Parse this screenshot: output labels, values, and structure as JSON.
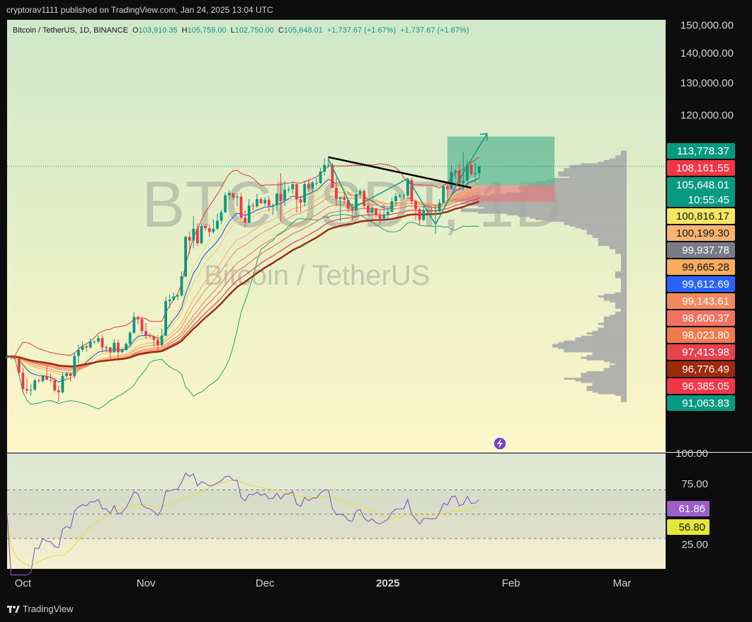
{
  "header": {
    "published": "cryptorav1111 published on TradingView.com, Jan 24, 2025 13:04 UTC"
  },
  "footer": {
    "brand": "TradingView",
    "logo_icon": "tradingview-logo-icon"
  },
  "legend": {
    "symbol": "Bitcoin / TetherUS, 1D, BINANCE",
    "open_label": "O",
    "open": "103,910.35",
    "high_label": "H",
    "high": "105,759.00",
    "low_label": "L",
    "low": "102,750.00",
    "close_label": "C",
    "close": "105,648.01",
    "change": "+1,737.67 (+1.67%)",
    "change2": "+1,737.67 (+1.67%)"
  },
  "watermark": {
    "ticker": "BTCUSDT, 1D",
    "name": "Bitcoin / TetherUS"
  },
  "colors": {
    "up": "#089981",
    "down": "#f23645",
    "bg_top": "#cfe8c9",
    "bg_bottom": "#fdf6c8",
    "long_box": "#5fb894",
    "stop_box": "#e67373",
    "volume_profile": "#a8a8a8",
    "bollinger_upper": "#e53935",
    "bollinger_lower": "#22a36b",
    "ema_blue": "#2962ff",
    "rsi_line": "#7e57c2",
    "rsi_ma": "#e6e04a"
  },
  "chart_data": [
    {
      "type": "candlestick",
      "title": "",
      "x_axis": {
        "ticks": [
          "Oct",
          "Nov",
          "Dec",
          "2025",
          "Feb",
          "Mar"
        ]
      },
      "y_axis": {
        "ticks": [
          "150,000.00",
          "140,000.00",
          "130,000.00",
          "120,000.00"
        ],
        "scale": "log"
      },
      "range": {
        "x_start": "2024-09-27",
        "x_end": "2025-03-12",
        "y_min": 52000,
        "y_max": 152000
      },
      "price_labels": [
        {
          "value": 113778.37,
          "text": "113,778.37",
          "color": "#089981"
        },
        {
          "value": 108161.55,
          "text": "108,161.55",
          "color": "#f23645"
        },
        {
          "value": 105648.01,
          "text": "105,648.01",
          "sub": "10:55:45",
          "color": "#089981"
        },
        {
          "value": 100816.17,
          "text": "100,816.17",
          "color": "#f5e663",
          "fg": "#131722"
        },
        {
          "value": 100199.3,
          "text": "100,199.30",
          "color": "#f8b36f",
          "fg": "#131722"
        },
        {
          "value": 99937.78,
          "text": "99,937.78",
          "color": "#787b86"
        },
        {
          "value": 99665.28,
          "text": "99,665.28",
          "color": "#f7ad5c",
          "fg": "#131722"
        },
        {
          "value": 99612.69,
          "text": "99,612.69",
          "color": "#2962ff"
        },
        {
          "value": 99143.61,
          "text": "99,143.61",
          "color": "#f08a5d"
        },
        {
          "value": 98600.37,
          "text": "98,600.37",
          "color": "#ef7361"
        },
        {
          "value": 98023.8,
          "text": "98,023.80",
          "color": "#f07a4a"
        },
        {
          "value": 97413.98,
          "text": "97,413.98",
          "color": "#e8414f"
        },
        {
          "value": 96776.49,
          "text": "96,776.49",
          "color": "#9e2a0b"
        },
        {
          "value": 96385.05,
          "text": "96,385.05",
          "color": "#f23645"
        },
        {
          "value": 91063.83,
          "text": "91,063.83",
          "color": "#089981"
        }
      ],
      "position": {
        "type": "long",
        "target": 113778.37,
        "entry": 100816.17,
        "stop": 96776.49,
        "start": "2025-01-16",
        "end": "2025-02-12"
      },
      "trendline": {
        "from": {
          "date": "2024-12-17",
          "price": 108100
        },
        "to": {
          "date": "2025-01-22",
          "price": 100200
        }
      },
      "current_price": 105648.01,
      "candles": [
        [
          "2024-09-27",
          65700,
          66400,
          65600,
          65900
        ],
        [
          "2024-09-28",
          65900,
          66200,
          65400,
          65800
        ],
        [
          "2024-09-29",
          65800,
          66100,
          65400,
          65600
        ],
        [
          "2024-09-30",
          65600,
          65700,
          63000,
          63300
        ],
        [
          "2024-10-01",
          63300,
          64100,
          60200,
          60800
        ],
        [
          "2024-10-02",
          60800,
          62400,
          60100,
          60600
        ],
        [
          "2024-10-03",
          60600,
          61500,
          59800,
          60700
        ],
        [
          "2024-10-04",
          60700,
          62400,
          60500,
          62100
        ],
        [
          "2024-10-05",
          62100,
          62400,
          61700,
          62000
        ],
        [
          "2024-10-06",
          62000,
          62900,
          61800,
          62800
        ],
        [
          "2024-10-07",
          62800,
          64500,
          62300,
          62200
        ],
        [
          "2024-10-08",
          62200,
          63200,
          61800,
          62100
        ],
        [
          "2024-10-09",
          62100,
          62500,
          60300,
          60600
        ],
        [
          "2024-10-10",
          60600,
          61300,
          58900,
          60300
        ],
        [
          "2024-10-11",
          60300,
          63400,
          60100,
          62800
        ],
        [
          "2024-10-12",
          62800,
          63500,
          62500,
          63200
        ],
        [
          "2024-10-13",
          63200,
          63300,
          62000,
          62800
        ],
        [
          "2024-10-14",
          62800,
          66500,
          62400,
          66000
        ],
        [
          "2024-10-15",
          66000,
          67900,
          64800,
          67000
        ],
        [
          "2024-10-16",
          67000,
          68400,
          66700,
          67600
        ],
        [
          "2024-10-17",
          67600,
          67900,
          66700,
          67400
        ],
        [
          "2024-10-18",
          67400,
          68900,
          67200,
          68400
        ],
        [
          "2024-10-19",
          68400,
          68600,
          68000,
          68400
        ],
        [
          "2024-10-20",
          68400,
          69400,
          68100,
          69000
        ],
        [
          "2024-10-21",
          69000,
          69500,
          66600,
          67400
        ],
        [
          "2024-10-22",
          67400,
          67800,
          66600,
          67400
        ],
        [
          "2024-10-23",
          67400,
          67500,
          65200,
          66600
        ],
        [
          "2024-10-24",
          66600,
          68800,
          66500,
          68200
        ],
        [
          "2024-10-25",
          68200,
          68700,
          65500,
          66600
        ],
        [
          "2024-10-26",
          66600,
          67400,
          66500,
          67000
        ],
        [
          "2024-10-27",
          67000,
          68300,
          66800,
          68000
        ],
        [
          "2024-10-28",
          68000,
          70200,
          67500,
          69900
        ],
        [
          "2024-10-29",
          69900,
          73600,
          69700,
          72700
        ],
        [
          "2024-10-30",
          72700,
          72900,
          71400,
          72300
        ],
        [
          "2024-10-31",
          72300,
          72700,
          69700,
          70200
        ],
        [
          "2024-11-01",
          70200,
          71600,
          68800,
          69500
        ],
        [
          "2024-11-02",
          69500,
          69900,
          69000,
          69300
        ],
        [
          "2024-11-03",
          69300,
          69400,
          67500,
          68700
        ],
        [
          "2024-11-04",
          68700,
          69500,
          66800,
          67800
        ],
        [
          "2024-11-05",
          67800,
          70600,
          67500,
          69400
        ],
        [
          "2024-11-06",
          69400,
          76400,
          69300,
          75600
        ],
        [
          "2024-11-07",
          75600,
          76900,
          74400,
          75900
        ],
        [
          "2024-11-08",
          75900,
          77200,
          75600,
          76500
        ],
        [
          "2024-11-09",
          76500,
          76900,
          75800,
          76700
        ],
        [
          "2024-11-10",
          76700,
          81400,
          76500,
          80400
        ],
        [
          "2024-11-11",
          80400,
          89000,
          80200,
          88700
        ],
        [
          "2024-11-12",
          88700,
          89900,
          85100,
          87900
        ],
        [
          "2024-11-13",
          87900,
          93400,
          86200,
          90500
        ],
        [
          "2024-11-14",
          90500,
          91800,
          86700,
          87300
        ],
        [
          "2024-11-15",
          87300,
          91800,
          87000,
          91100
        ],
        [
          "2024-11-16",
          91100,
          91600,
          90100,
          90600
        ],
        [
          "2024-11-17",
          90600,
          91400,
          88700,
          89800
        ],
        [
          "2024-11-18",
          89800,
          92600,
          89400,
          90500
        ],
        [
          "2024-11-19",
          90500,
          94000,
          90300,
          92300
        ],
        [
          "2024-11-20",
          92300,
          94900,
          91500,
          94300
        ],
        [
          "2024-11-21",
          94300,
          99000,
          94100,
          98300
        ],
        [
          "2024-11-22",
          98300,
          99600,
          97200,
          98900
        ],
        [
          "2024-11-23",
          98900,
          98900,
          97200,
          97800
        ],
        [
          "2024-11-24",
          97800,
          98700,
          95700,
          98000
        ],
        [
          "2024-11-25",
          98000,
          98900,
          92600,
          93000
        ],
        [
          "2024-11-26",
          93000,
          94700,
          90800,
          91900
        ],
        [
          "2024-11-27",
          91900,
          97400,
          91800,
          95900
        ],
        [
          "2024-11-28",
          95900,
          96600,
          94700,
          95700
        ],
        [
          "2024-11-29",
          95700,
          98700,
          95400,
          97400
        ],
        [
          "2024-11-30",
          97400,
          97800,
          96300,
          96400
        ],
        [
          "2024-12-01",
          96400,
          97900,
          95800,
          97200
        ],
        [
          "2024-12-02",
          97200,
          98100,
          94500,
          95800
        ],
        [
          "2024-12-03",
          95800,
          96300,
          93600,
          96000
        ],
        [
          "2024-12-04",
          96000,
          99000,
          94600,
          98700
        ],
        [
          "2024-12-05",
          98700,
          103900,
          92100,
          97000
        ],
        [
          "2024-12-06",
          97000,
          101900,
          95800,
          99700
        ],
        [
          "2024-12-07",
          99700,
          100500,
          99000,
          99800
        ],
        [
          "2024-12-08",
          99800,
          101400,
          98800,
          101100
        ],
        [
          "2024-12-09",
          101100,
          101200,
          94200,
          97300
        ],
        [
          "2024-12-10",
          97300,
          98300,
          94300,
          96600
        ],
        [
          "2024-12-11",
          96600,
          101900,
          95600,
          101100
        ],
        [
          "2024-12-12",
          101100,
          102500,
          99300,
          100000
        ],
        [
          "2024-12-13",
          100000,
          101900,
          99200,
          101400
        ],
        [
          "2024-12-14",
          101400,
          102600,
          100600,
          101400
        ],
        [
          "2024-12-15",
          101400,
          105200,
          101200,
          104300
        ],
        [
          "2024-12-16",
          104300,
          107800,
          103300,
          106000
        ],
        [
          "2024-12-17",
          106000,
          108300,
          105300,
          106100
        ],
        [
          "2024-12-18",
          106100,
          106500,
          100000,
          100200
        ],
        [
          "2024-12-19",
          100200,
          102800,
          95700,
          97400
        ],
        [
          "2024-12-20",
          97400,
          98000,
          92200,
          97800
        ],
        [
          "2024-12-21",
          97800,
          99500,
          96400,
          97200
        ],
        [
          "2024-12-22",
          97200,
          97400,
          94200,
          95100
        ],
        [
          "2024-12-23",
          95100,
          96400,
          92400,
          94700
        ],
        [
          "2024-12-24",
          94700,
          99500,
          93400,
          98600
        ],
        [
          "2024-12-25",
          98600,
          99900,
          97600,
          99400
        ],
        [
          "2024-12-26",
          99400,
          99900,
          95100,
          95800
        ],
        [
          "2024-12-27",
          95800,
          97500,
          93500,
          94200
        ],
        [
          "2024-12-28",
          94200,
          95500,
          94100,
          95200
        ],
        [
          "2024-12-29",
          95200,
          95200,
          93000,
          93600
        ],
        [
          "2024-12-30",
          93600,
          94900,
          91500,
          92800
        ],
        [
          "2024-12-31",
          92800,
          96200,
          92000,
          93600
        ],
        [
          "2025-01-01",
          93600,
          95000,
          92700,
          94400
        ],
        [
          "2025-01-02",
          94400,
          97800,
          94200,
          96900
        ],
        [
          "2025-01-03",
          96900,
          98900,
          96000,
          98100
        ],
        [
          "2025-01-04",
          98100,
          98700,
          97800,
          98200
        ],
        [
          "2025-01-05",
          98200,
          98800,
          97300,
          98300
        ],
        [
          "2025-01-06",
          98300,
          102500,
          97900,
          102100
        ],
        [
          "2025-01-07",
          102100,
          102700,
          96100,
          96900
        ],
        [
          "2025-01-08",
          96900,
          97300,
          92500,
          95000
        ],
        [
          "2025-01-09",
          95000,
          95300,
          91200,
          92500
        ],
        [
          "2025-01-10",
          92500,
          95800,
          92200,
          94700
        ],
        [
          "2025-01-11",
          94700,
          95000,
          93800,
          94600
        ],
        [
          "2025-01-12",
          94600,
          95400,
          93700,
          94500
        ],
        [
          "2025-01-13",
          94500,
          95900,
          89300,
          94500
        ],
        [
          "2025-01-14",
          94500,
          97400,
          94300,
          96500
        ],
        [
          "2025-01-15",
          96500,
          100700,
          96500,
          100500
        ],
        [
          "2025-01-16",
          100500,
          100900,
          97300,
          99900
        ],
        [
          "2025-01-17",
          99900,
          105900,
          99900,
          104100
        ],
        [
          "2025-01-18",
          104100,
          104900,
          102300,
          104500
        ],
        [
          "2025-01-19",
          104500,
          106300,
          99600,
          101300
        ],
        [
          "2025-01-20",
          101300,
          109600,
          99500,
          102000
        ],
        [
          "2025-01-21",
          102000,
          107200,
          100100,
          106100
        ],
        [
          "2025-01-22",
          106100,
          106400,
          103300,
          103700
        ],
        [
          "2025-01-23",
          103700,
          106800,
          101300,
          103910
        ],
        [
          "2025-01-24",
          103910,
          105759,
          102750,
          105648
        ]
      ]
    },
    {
      "type": "line",
      "title": "",
      "indicator": "RSI",
      "y_axis": {
        "ticks": [
          "100.00",
          "75.00",
          "25.00"
        ],
        "range": [
          5,
          100
        ],
        "bands": [
          30,
          50,
          70
        ]
      },
      "labels": [
        {
          "value": 61.86,
          "text": "61.86",
          "color": "#9c5ec7"
        },
        {
          "value": 56.8,
          "text": "56.80",
          "color": "#e6e638",
          "fg": "#131722"
        }
      ]
    }
  ]
}
